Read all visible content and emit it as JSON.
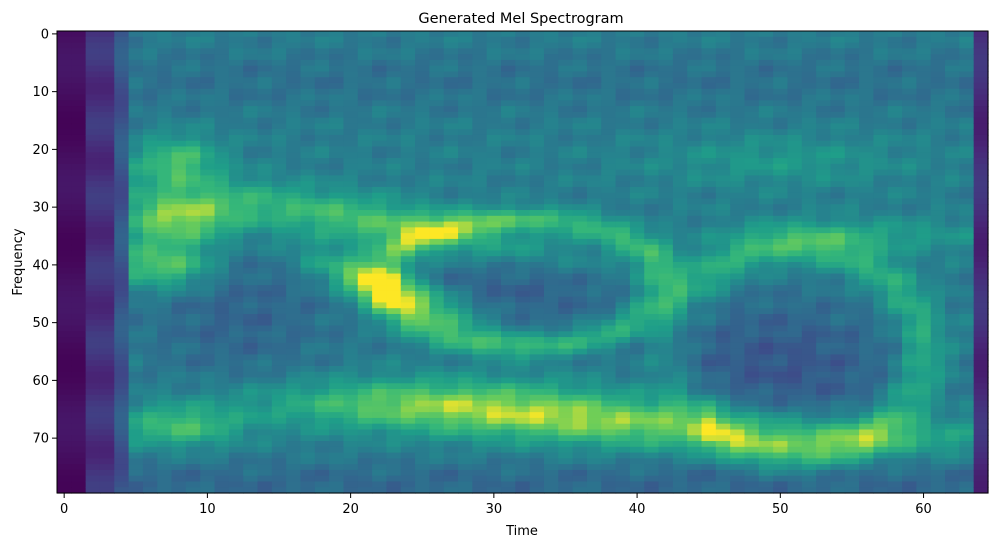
{
  "chart_data": {
    "type": "heatmap",
    "title": "Generated Mel Spectrogram",
    "xlabel": "Time",
    "ylabel": "Frequency",
    "xlim": [
      -0.5,
      64.5
    ],
    "ylim": [
      79.5,
      -0.5
    ],
    "xticks": [
      0,
      10,
      20,
      30,
      40,
      50,
      60
    ],
    "yticks": [
      0,
      10,
      20,
      30,
      40,
      50,
      60,
      70
    ],
    "n_time": 65,
    "n_freq": 80,
    "colormap": "viridis",
    "grid": false,
    "legend": "none"
  }
}
